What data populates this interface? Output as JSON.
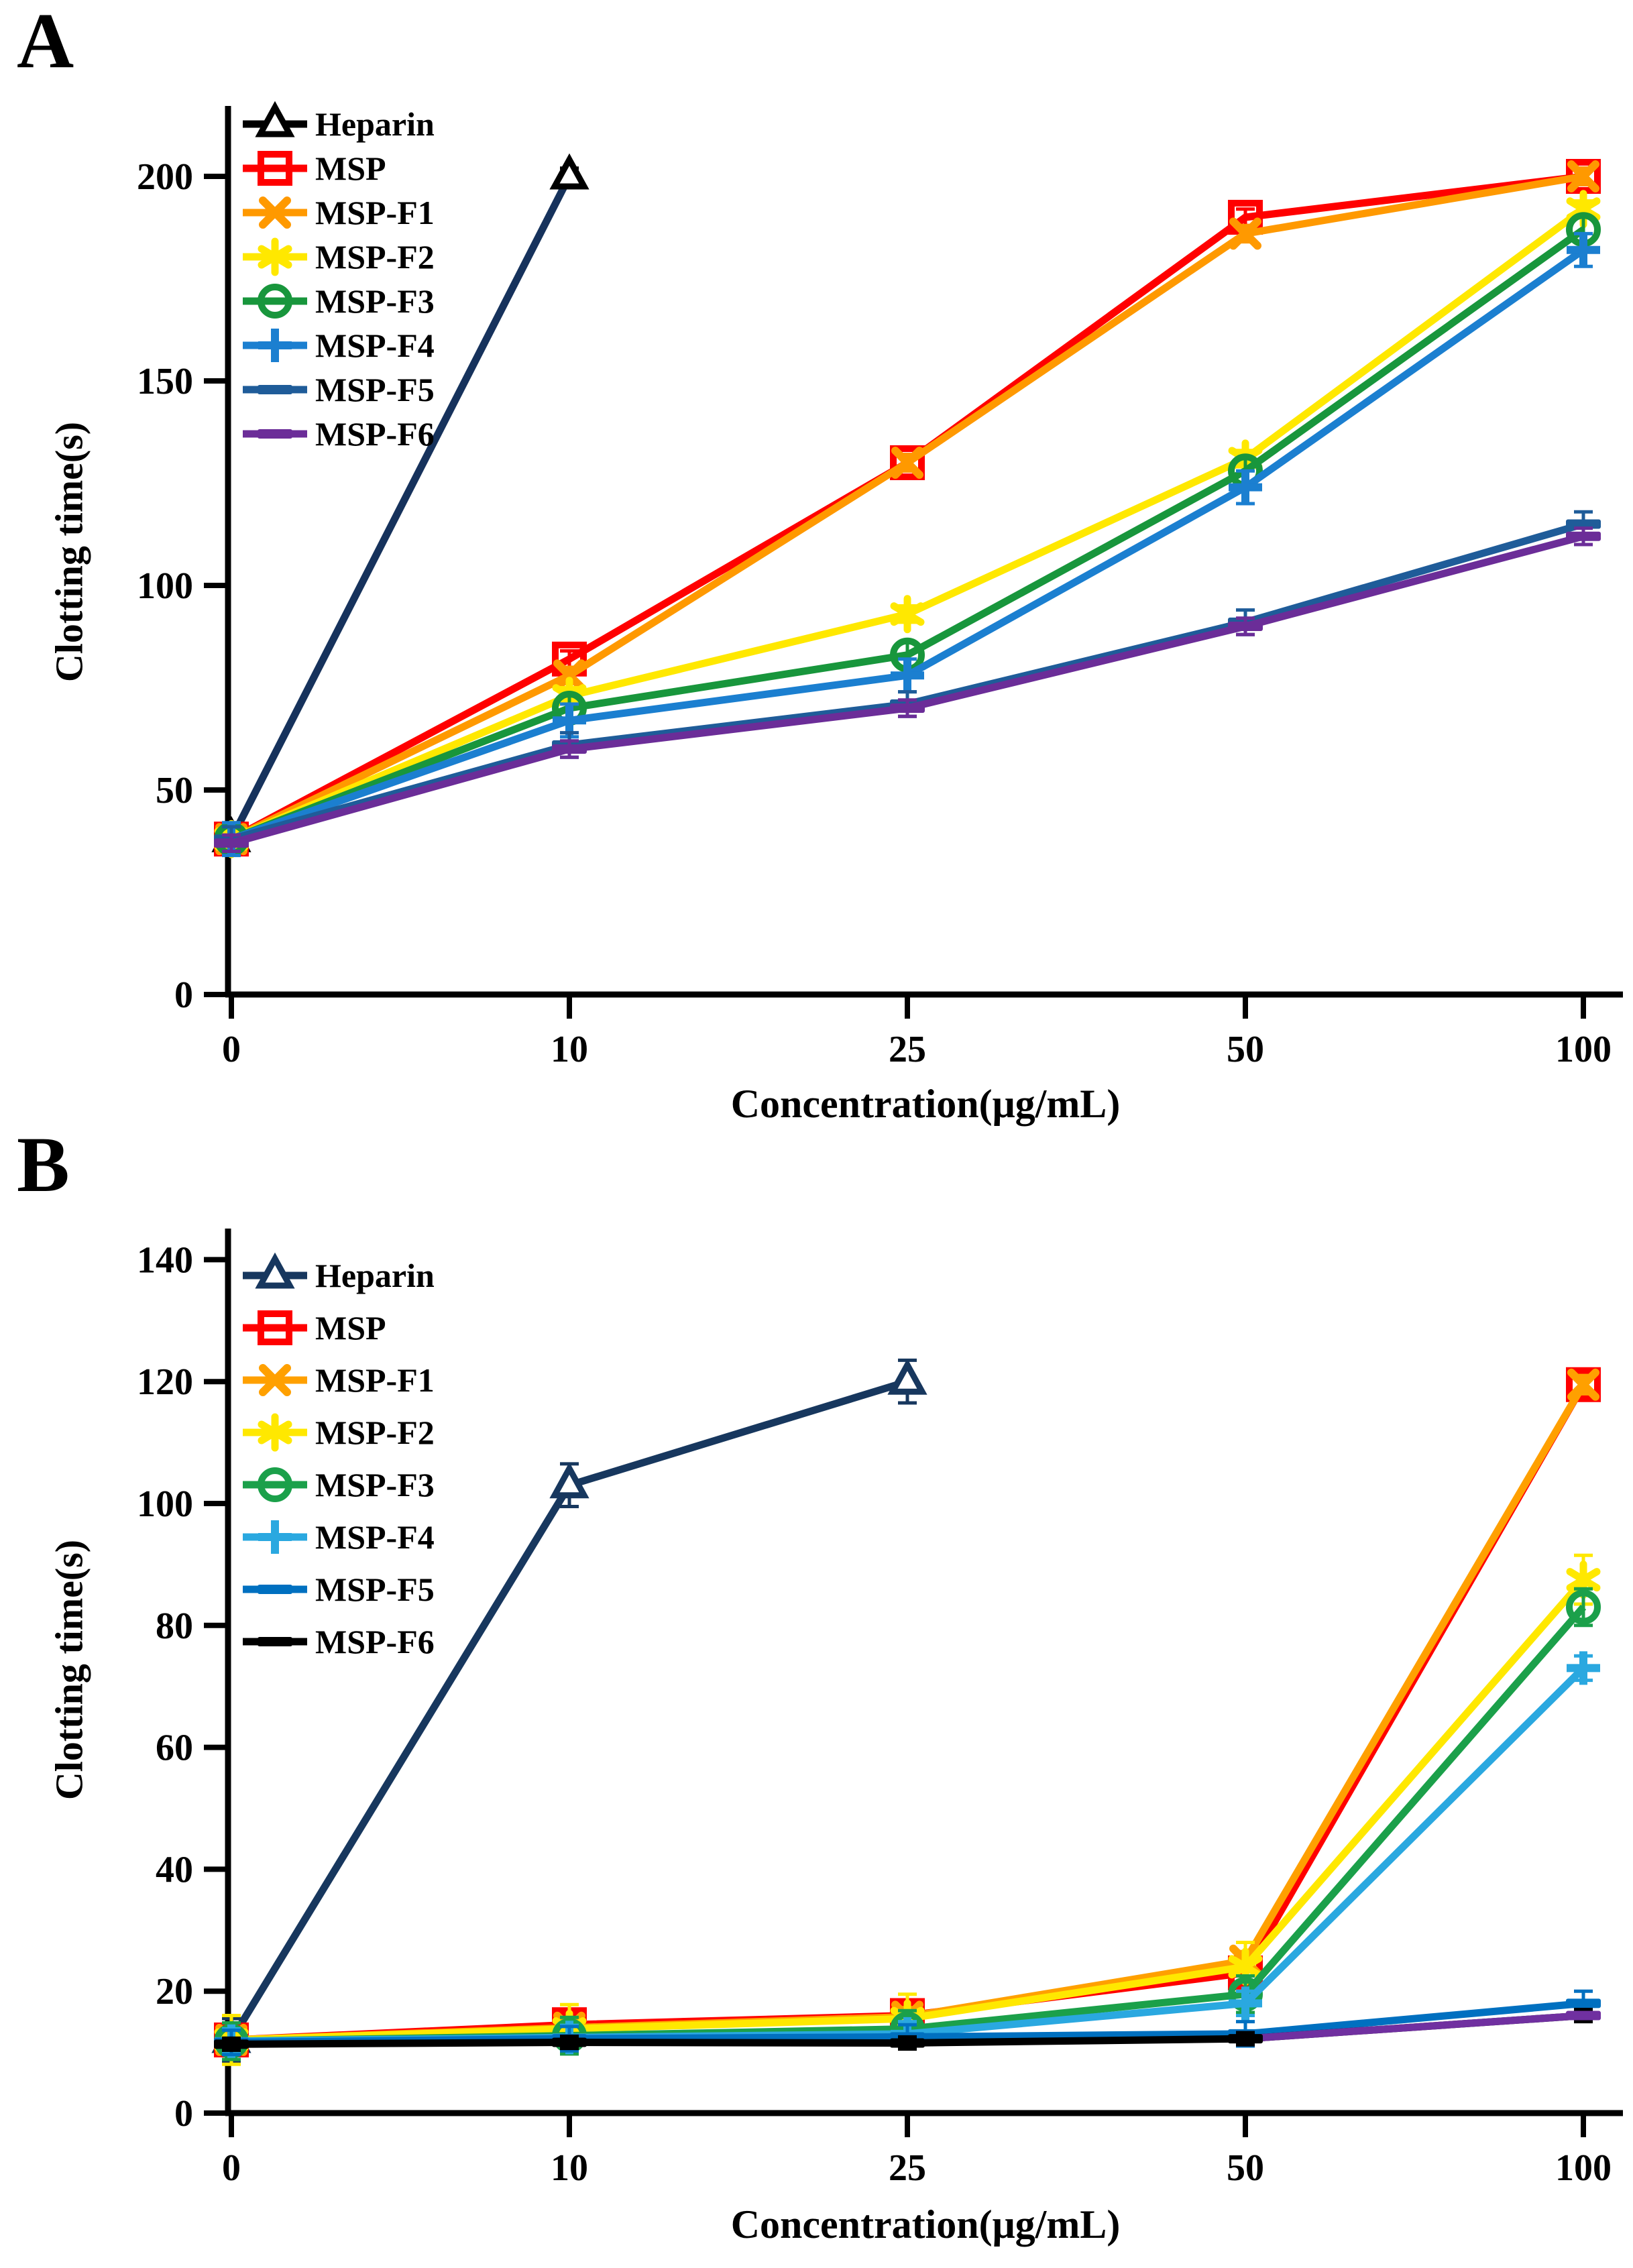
{
  "figure": {
    "background": "#FFFFFF",
    "description_texts": {
      "panel_a_letter": "A",
      "panel_b_letter": "B"
    }
  },
  "panels": [
    {
      "label": "A"
    },
    {
      "label": "B"
    }
  ],
  "chart_data": [
    {
      "type": "line",
      "panel": "A",
      "title": "",
      "xlabel": "Concentration(μg/mL)",
      "ylabel": "Clotting time(s)",
      "x_categories": [
        "0",
        "10",
        "25",
        "50",
        "100"
      ],
      "yticks": [
        0,
        50,
        100,
        150,
        200
      ],
      "ylim": [
        0,
        217
      ],
      "grid": false,
      "legend_position": "top-left",
      "series": [
        {
          "name": "Heparin",
          "color": "#16325C",
          "legend_color": "#000000",
          "marker": "triangle-open",
          "marker_color": "#000000",
          "values": [
            38,
            200,
            null,
            null,
            null
          ],
          "err": 2
        },
        {
          "name": "MSP",
          "color": "#FF0000",
          "marker": "square-open",
          "values": [
            38,
            82,
            130,
            190,
            200
          ],
          "err": 2
        },
        {
          "name": "MSP-F1",
          "color": "#FF9900",
          "marker": "x",
          "values": [
            38,
            78,
            130,
            186,
            200
          ],
          "err": 2
        },
        {
          "name": "MSP-F2",
          "color": "#FFE800",
          "marker": "asterisk",
          "values": [
            38,
            73,
            93,
            131,
            192
          ],
          "err": 2
        },
        {
          "name": "MSP-F3",
          "color": "#18963C",
          "marker": "circle-open",
          "values": [
            38,
            70,
            83,
            128,
            187
          ],
          "err": 3
        },
        {
          "name": "MSP-F4",
          "color": "#1B7FD0",
          "marker": "plus",
          "values": [
            38,
            67,
            78,
            124,
            182
          ],
          "err": 4
        },
        {
          "name": "MSP-F5",
          "color": "#1F5C99",
          "marker": "dash",
          "values": [
            38,
            61,
            71,
            91,
            115
          ],
          "err": 3
        },
        {
          "name": "MSP-F6",
          "color": "#6B2D98",
          "marker": "dash",
          "values": [
            37,
            60,
            70,
            90,
            112
          ],
          "err": 2
        }
      ]
    },
    {
      "type": "line",
      "panel": "B",
      "title": "",
      "xlabel": "Concentration(μg/mL)",
      "ylabel": "Clotting time(s)",
      "x_categories": [
        "0",
        "10",
        "25",
        "50",
        "100"
      ],
      "yticks": [
        0,
        20,
        40,
        60,
        80,
        100,
        120,
        140
      ],
      "ylim": [
        0,
        145
      ],
      "grid": false,
      "legend_position": "top-left",
      "series": [
        {
          "name": "Heparin",
          "color": "#17375E",
          "marker": "triangle-open",
          "values": [
            12,
            103,
            120,
            null,
            null
          ],
          "err": 3.5
        },
        {
          "name": "MSP",
          "color": "#FF0000",
          "marker": "square-open",
          "values": [
            12,
            14.5,
            16,
            23,
            119.5
          ],
          "err": 1.5
        },
        {
          "name": "MSP-F1",
          "color": "#FFA000",
          "marker": "x",
          "values": [
            12,
            14,
            15.8,
            25,
            119.5
          ],
          "err": 1.5
        },
        {
          "name": "MSP-F2",
          "color": "#FFE800",
          "marker": "asterisk",
          "values": [
            12,
            13.8,
            15.5,
            24,
            87.5
          ],
          "err": 4
        },
        {
          "name": "MSP-F3",
          "color": "#1BA04A",
          "marker": "circle-open",
          "values": [
            11.8,
            12.7,
            13.8,
            19.5,
            83
          ],
          "err": 3
        },
        {
          "name": "MSP-F4",
          "color": "#2AA8E0",
          "marker": "plus",
          "values": [
            11.8,
            12.4,
            13,
            18,
            73
          ],
          "err": 2
        },
        {
          "name": "MSP-F5",
          "color": "#0070C0",
          "marker": "dash",
          "values": [
            11.6,
            12.2,
            12.5,
            13,
            18
          ],
          "err": 2
        },
        {
          "name": "MSP-F6",
          "color": "#000000",
          "marker": "dash",
          "values": [
            11.3,
            11.6,
            11.5,
            12.2,
            16
          ],
          "err": 1,
          "overlay": {
            "color": "#7030A0",
            "from": 3
          }
        }
      ]
    }
  ]
}
